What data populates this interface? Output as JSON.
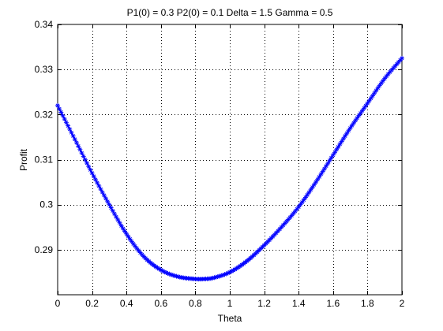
{
  "chart_data": {
    "type": "line",
    "title": "P1(0) = 0.3 P2(0) = 0.1 Delta = 1.5 Gamma = 0.5",
    "xlabel": "Theta",
    "ylabel": "Profit",
    "xlim": [
      0,
      2
    ],
    "ylim": [
      0.28,
      0.34
    ],
    "xticks": [
      0,
      0.2,
      0.4,
      0.6,
      0.8,
      1,
      1.2,
      1.4,
      1.6,
      1.8,
      2
    ],
    "xtick_labels": [
      "0",
      "0.2",
      "0.4",
      "0.6",
      "0.8",
      "1",
      "1.2",
      "1.4",
      "1.6",
      "1.8",
      "2"
    ],
    "yticks": [
      0.29,
      0.3,
      0.31,
      0.32,
      0.33,
      0.34
    ],
    "ytick_labels": [
      "0.29",
      "0.3",
      "0.31",
      "0.32",
      "0.33",
      "0.34"
    ],
    "grid": true,
    "marker": "asterisk",
    "series_color": "#0000ff",
    "series": [
      {
        "x": [
          0,
          0.1,
          0.2,
          0.3,
          0.4,
          0.5,
          0.6,
          0.7,
          0.8,
          0.85,
          0.9,
          1.0,
          1.1,
          1.2,
          1.3,
          1.4,
          1.5,
          1.6,
          1.7,
          1.8,
          1.9,
          2.0
        ],
        "values": [
          0.322,
          0.3145,
          0.307,
          0.3,
          0.2935,
          0.2885,
          0.2855,
          0.284,
          0.2835,
          0.2835,
          0.2837,
          0.285,
          0.2875,
          0.291,
          0.295,
          0.2995,
          0.305,
          0.311,
          0.317,
          0.3225,
          0.328,
          0.3325
        ]
      }
    ]
  }
}
